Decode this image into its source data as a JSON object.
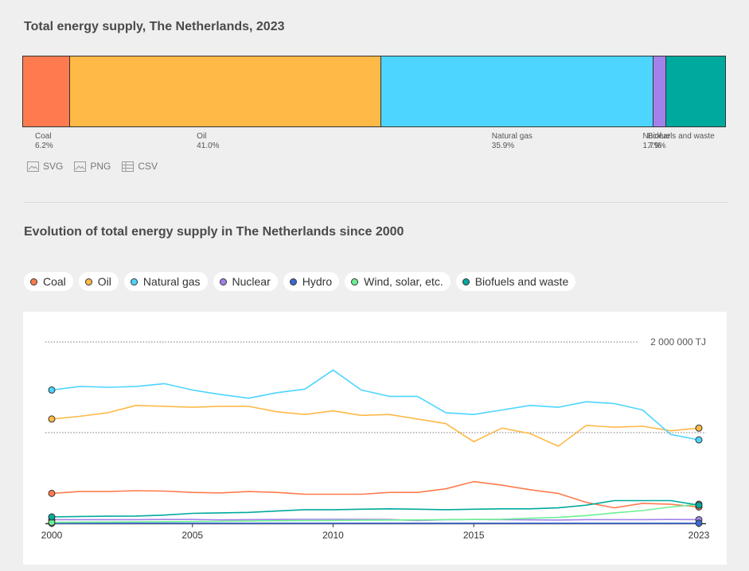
{
  "section1": {
    "title": "Total energy supply, The Netherlands, 2023"
  },
  "downloads": [
    {
      "label": "SVG",
      "icon": "image-icon"
    },
    {
      "label": "PNG",
      "icon": "image-icon"
    },
    {
      "label": "CSV",
      "icon": "table-icon"
    }
  ],
  "section2": {
    "title": "Evolution of total energy supply in The Netherlands since 2000"
  },
  "colors": {
    "Coal": "#ff7b4f",
    "Oil": "#ffb947",
    "Natural gas": "#4dd5ff",
    "Nuclear": "#a282ea",
    "Hydro": "#3e68d3",
    "Wind, solar, etc.": "#6df093",
    "Biofuels and waste": "#00a99d"
  },
  "chart_data": [
    {
      "type": "bar",
      "stacked": true,
      "title": "Total energy supply, The Netherlands, 2023",
      "categories": [
        "Coal",
        "Oil",
        "Natural gas",
        "Nuclear",
        "Biofuels and waste"
      ],
      "values": [
        6.2,
        41.0,
        35.9,
        1.7,
        7.9
      ],
      "labels": [
        "6.2%",
        "41.0%",
        "35.9%",
        "1.7%",
        "7.9%"
      ],
      "legend": "below"
    },
    {
      "type": "line",
      "title": "Evolution of total energy supply in The Netherlands since 2000",
      "x": [
        2000,
        2001,
        2002,
        2003,
        2004,
        2005,
        2006,
        2007,
        2008,
        2009,
        2010,
        2011,
        2012,
        2013,
        2014,
        2015,
        2016,
        2017,
        2018,
        2019,
        2020,
        2021,
        2022,
        2023
      ],
      "xticks": [
        "2000",
        "2005",
        "2010",
        "2015",
        "2023"
      ],
      "ylim": [
        0,
        2000000
      ],
      "reference_line": {
        "value": 2000000,
        "label": "2 000 000 TJ"
      },
      "grid": true,
      "legend": "top",
      "series": [
        {
          "name": "Coal",
          "values": [
            330000,
            350000,
            350000,
            360000,
            355000,
            340000,
            335000,
            350000,
            340000,
            320000,
            320000,
            320000,
            340000,
            340000,
            380000,
            460000,
            420000,
            370000,
            330000,
            230000,
            170000,
            220000,
            210000,
            180000
          ]
        },
        {
          "name": "Oil",
          "values": [
            1150000,
            1180000,
            1220000,
            1300000,
            1290000,
            1280000,
            1290000,
            1290000,
            1230000,
            1200000,
            1240000,
            1190000,
            1200000,
            1150000,
            1100000,
            900000,
            1050000,
            990000,
            850000,
            1080000,
            1060000,
            1070000,
            1020000,
            1050000
          ]
        },
        {
          "name": "Natural gas",
          "values": [
            1470000,
            1510000,
            1500000,
            1510000,
            1540000,
            1470000,
            1420000,
            1380000,
            1440000,
            1480000,
            1690000,
            1470000,
            1400000,
            1400000,
            1220000,
            1200000,
            1250000,
            1300000,
            1280000,
            1340000,
            1320000,
            1250000,
            980000,
            920000
          ]
        },
        {
          "name": "Nuclear",
          "values": [
            40000,
            40000,
            40000,
            40000,
            42000,
            42000,
            38000,
            40000,
            42000,
            44000,
            44000,
            44000,
            42000,
            30000,
            40000,
            42000,
            40000,
            38000,
            36000,
            40000,
            40000,
            40000,
            42000,
            40000
          ]
        },
        {
          "name": "Hydro",
          "values": [
            1000,
            1000,
            1000,
            1000,
            1000,
            1000,
            1000,
            1000,
            1000,
            1000,
            1000,
            1000,
            1000,
            1000,
            1000,
            1000,
            1000,
            1000,
            1000,
            1000,
            1000,
            1000,
            1000,
            1000
          ]
        },
        {
          "name": "Wind, solar, etc.",
          "values": [
            10000,
            12000,
            14000,
            16000,
            18000,
            20000,
            22000,
            25000,
            28000,
            30000,
            32000,
            34000,
            36000,
            38000,
            40000,
            42000,
            45000,
            55000,
            65000,
            85000,
            115000,
            140000,
            180000,
            210000
          ]
        },
        {
          "name": "Biofuels and waste",
          "values": [
            70000,
            75000,
            78000,
            80000,
            90000,
            110000,
            115000,
            120000,
            135000,
            150000,
            150000,
            155000,
            160000,
            155000,
            150000,
            155000,
            160000,
            160000,
            170000,
            200000,
            250000,
            250000,
            250000,
            200000
          ]
        }
      ]
    }
  ]
}
